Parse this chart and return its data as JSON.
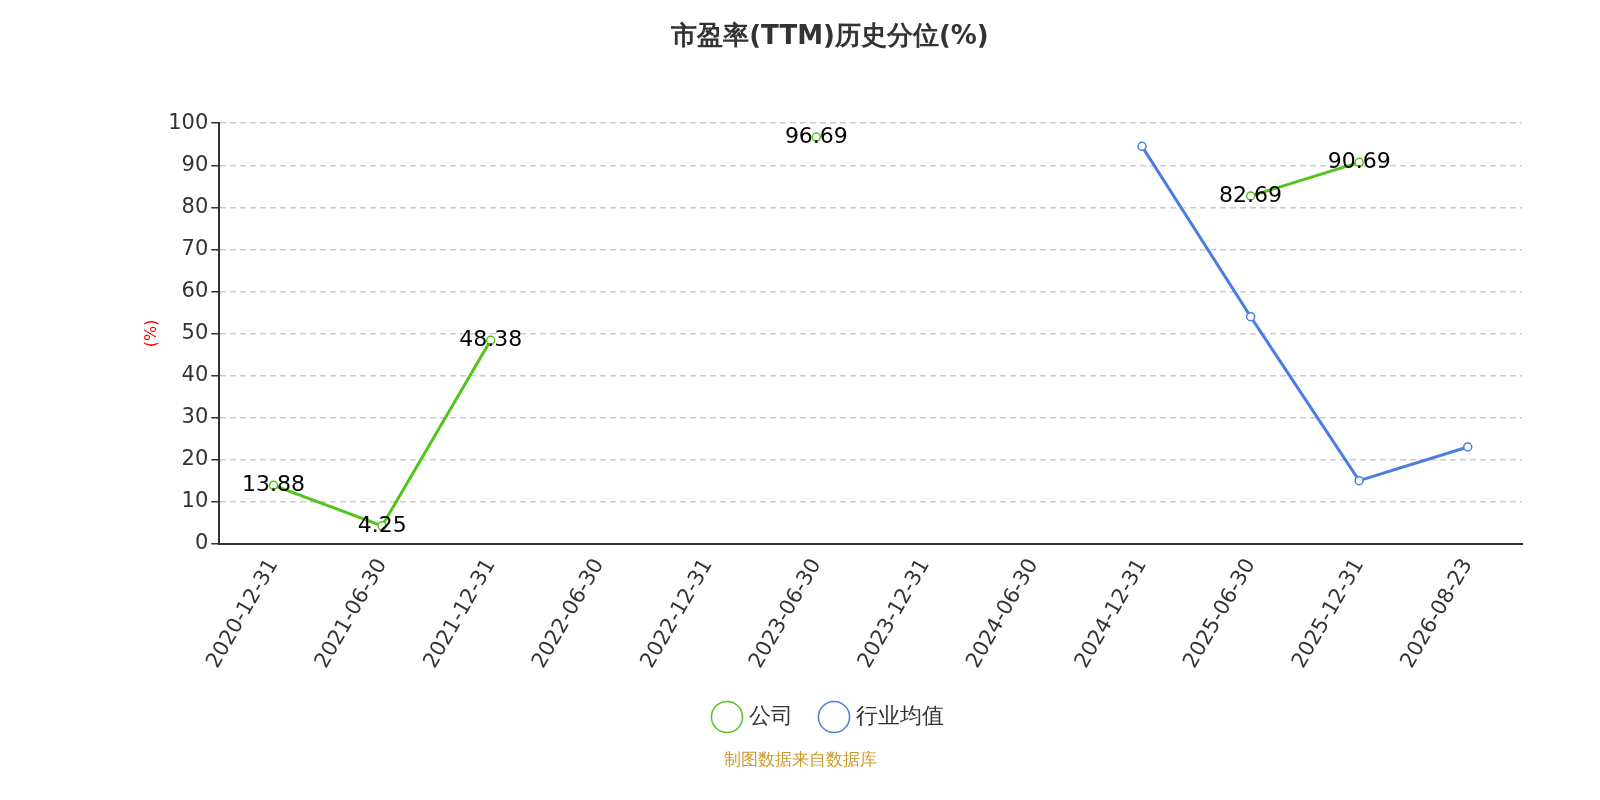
{
  "chart_data": {
    "type": "line",
    "title": "市盈率(TTM)历史分位(%)",
    "ylabel": "(%)",
    "categories": [
      "2020-12-31",
      "2021-06-30",
      "2021-12-31",
      "2022-06-30",
      "2022-12-31",
      "2023-06-30",
      "2023-12-31",
      "2024-06-30",
      "2024-12-31",
      "2025-06-30",
      "2025-12-31",
      "2026-08-23"
    ],
    "series": [
      {
        "name": "公司",
        "color": "#52c41a",
        "values": [
          13.88,
          4.25,
          48.38,
          null,
          null,
          96.69,
          null,
          null,
          null,
          82.69,
          90.69,
          null
        ],
        "value_labels": [
          "13.88",
          "4.25",
          "48.38",
          null,
          null,
          "96.69",
          null,
          null,
          null,
          "82.69",
          "90.69",
          null
        ]
      },
      {
        "name": "行业均值",
        "color": "#4a7ee0",
        "values": [
          null,
          null,
          null,
          null,
          null,
          null,
          null,
          null,
          94.5,
          54,
          15,
          23
        ]
      }
    ],
    "ylim": [
      0,
      100
    ],
    "yticks": [
      0,
      10,
      20,
      30,
      40,
      50,
      60,
      70,
      80,
      90,
      100
    ],
    "grid": "y",
    "legend": "bottom",
    "marker": "circle",
    "line_style": "solid",
    "annotations": [
      "制图数据来自数据库"
    ]
  }
}
